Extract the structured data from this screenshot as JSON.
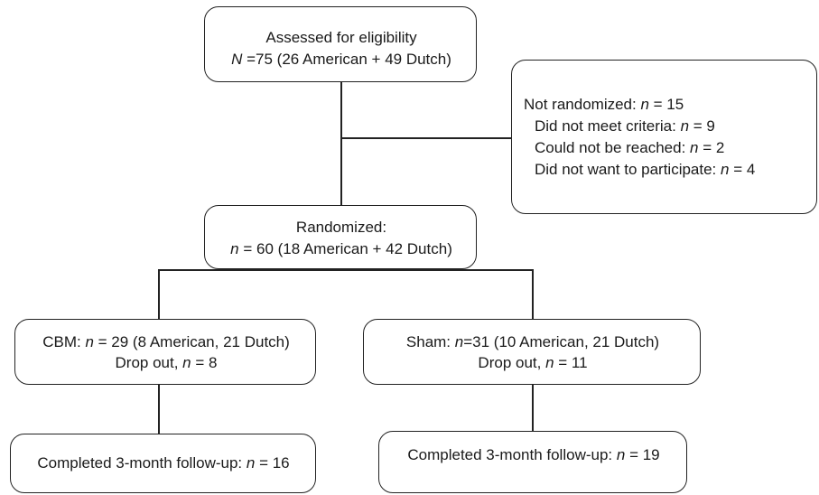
{
  "assessed": {
    "line1": "Assessed for eligibility",
    "line2": [
      {
        "t": "N",
        "i": true
      },
      {
        "t": " =75 (26 American + 49 Dutch)",
        "i": false
      }
    ]
  },
  "not_randomized": {
    "lines": [
      [
        {
          "t": "Not randomized: ",
          "i": false
        },
        {
          "t": "n",
          "i": true
        },
        {
          "t": " = 15",
          "i": false
        }
      ],
      [
        {
          "t": "Did not meet criteria: ",
          "i": false
        },
        {
          "t": "n",
          "i": true
        },
        {
          "t": " = 9",
          "i": false
        }
      ],
      [
        {
          "t": "Could not be reached: ",
          "i": false
        },
        {
          "t": "n",
          "i": true
        },
        {
          "t": " = 2",
          "i": false
        }
      ],
      [
        {
          "t": "Did not want to participate: ",
          "i": false
        },
        {
          "t": "n",
          "i": true
        },
        {
          "t": " = 4",
          "i": false
        }
      ]
    ]
  },
  "randomized": {
    "line1": "Randomized:",
    "line2": [
      {
        "t": "n",
        "i": true
      },
      {
        "t": " = 60 (18 American + 42 Dutch)",
        "i": false
      }
    ]
  },
  "cbm": {
    "line1": [
      {
        "t": "CBM: ",
        "i": false
      },
      {
        "t": "n",
        "i": true
      },
      {
        "t": " = 29 (8 American, 21 Dutch)",
        "i": false
      }
    ],
    "line2": [
      {
        "t": "Drop out, ",
        "i": false
      },
      {
        "t": "n",
        "i": true
      },
      {
        "t": " = 8",
        "i": false
      }
    ]
  },
  "sham": {
    "line1": [
      {
        "t": "Sham: ",
        "i": false
      },
      {
        "t": "n",
        "i": true
      },
      {
        "t": "=31 (10 American, 21 Dutch)",
        "i": false
      }
    ],
    "line2": [
      {
        "t": "Drop out, ",
        "i": false
      },
      {
        "t": "n",
        "i": true
      },
      {
        "t": " = 11",
        "i": false
      }
    ]
  },
  "cbm_followup": {
    "line1": [
      {
        "t": "Completed 3-month follow-up: ",
        "i": false
      },
      {
        "t": "n",
        "i": true
      },
      {
        "t": " = 16",
        "i": false
      }
    ]
  },
  "sham_followup": {
    "line1": [
      {
        "t": "Completed 3-month follow-up: ",
        "i": false
      },
      {
        "t": "n",
        "i": true
      },
      {
        "t": " = 19",
        "i": false
      }
    ]
  }
}
